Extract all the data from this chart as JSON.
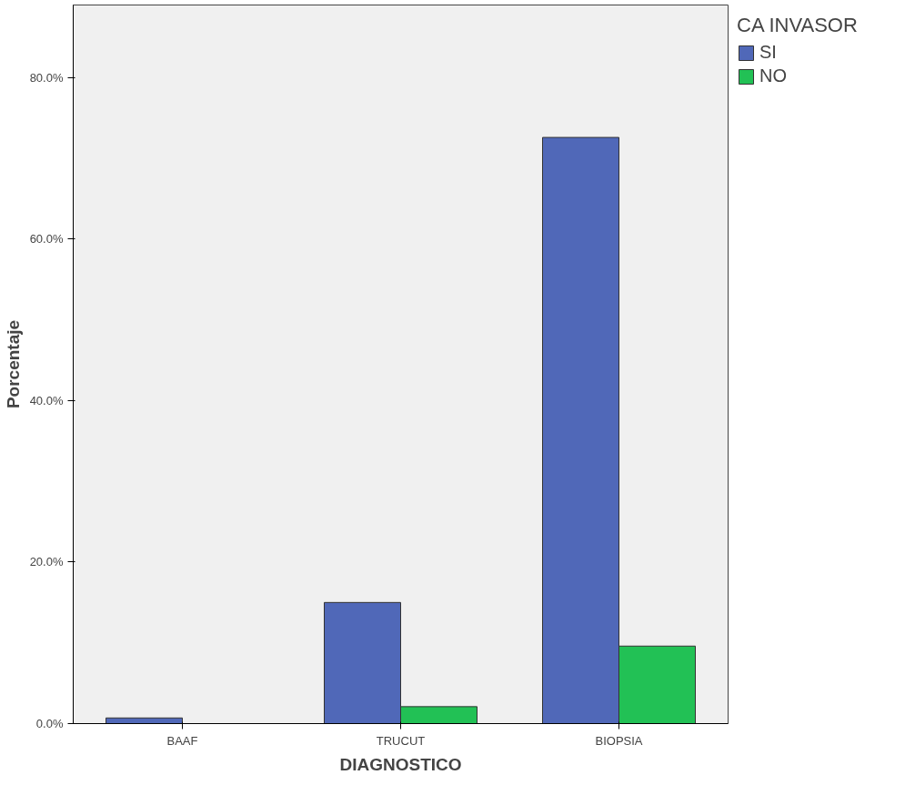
{
  "chart_data": {
    "type": "bar",
    "xlabel": "DIAGNOSTICO",
    "ylabel": "Porcentaje",
    "legend_title": "CA INVASOR",
    "categories": [
      "BAAF",
      "TRUCUT",
      "BIOPSIA"
    ],
    "series": [
      {
        "name": "SI",
        "color": "#5068b8",
        "values": [
          0.7,
          15.0,
          72.6
        ]
      },
      {
        "name": "NO",
        "color": "#22c155",
        "values": [
          null,
          2.1,
          9.6
        ]
      }
    ],
    "ylim": [
      0,
      89
    ],
    "yticks": [
      {
        "value": 0,
        "label": "0.0%"
      },
      {
        "value": 20,
        "label": "20.0%"
      },
      {
        "value": 40,
        "label": "40.0%"
      },
      {
        "value": 60,
        "label": "60.0%"
      },
      {
        "value": 80,
        "label": "80.0%"
      }
    ],
    "grid": false,
    "legend": "top right"
  }
}
